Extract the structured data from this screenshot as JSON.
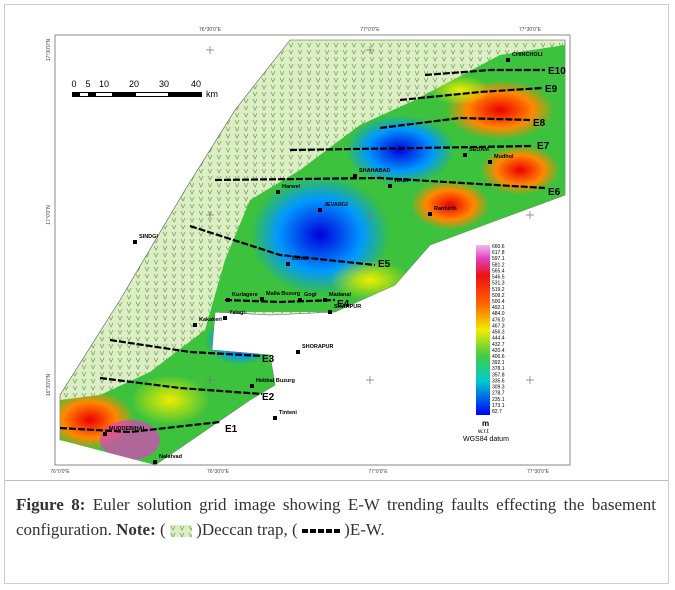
{
  "figure": {
    "map": {
      "graticule": {
        "top": [
          "76°30'0\"E",
          "77°0'0\"E",
          "77°30'0\"E"
        ],
        "bottom": [
          "76°0'0\"E",
          "76°30'0\"E",
          "77°0'0\"E",
          "77°30'0\"E"
        ],
        "left": [
          "17°30'0\"N",
          "17°0'0\"N",
          "16°30'0\"N"
        ]
      },
      "scale_bar": {
        "ticks": [
          "0",
          "5",
          "10",
          "20",
          "30",
          "40"
        ],
        "unit": "km"
      },
      "faults": [
        "E1",
        "E2",
        "E3",
        "E4",
        "E5",
        "E6",
        "E7",
        "E8",
        "E9",
        "E10"
      ],
      "places": [
        "CHINCHOLI",
        "SEDAM",
        "SHAHABAD",
        "WADI",
        "Harwel",
        "JEVARGI",
        "Mudhol",
        "Ranbirth",
        "SINDGI",
        "Uknali",
        "Kurlagere",
        "Malla Buzurg",
        "Gogi",
        "Madanal",
        "SHAHPUR",
        "Yalagi",
        "Kakakeri",
        "SHORAPUR",
        "Hebbal Buzurg",
        "Tinteni",
        "MUDDEBIHAL",
        "Nalatvad"
      ],
      "colorbar": {
        "values": [
          "660.6",
          "617.8",
          "597.1",
          "581.2",
          "565.4",
          "546.5",
          "531.3",
          "519.2",
          "509.2",
          "500.4",
          "492.1",
          "484.0",
          "476.0",
          "467.3",
          "456.3",
          "444.4",
          "432.7",
          "420.4",
          "406.6",
          "392.1",
          "378.1",
          "357.8",
          "335.6",
          "309.3",
          "278.7",
          "235.1",
          "173.1",
          "82.7"
        ],
        "unit": "m",
        "reference": [
          "w.r.t",
          "WGS84 datum"
        ]
      }
    },
    "caption": {
      "label": "Figure 8:",
      "text": "Euler solution grid image showing E-W trending faults effecting the basement configuration.",
      "note_label": "Note:",
      "items": [
        {
          "open": "(",
          "close": ")Deccan trap,"
        },
        {
          "open": "(",
          "close": ")E-W."
        }
      ]
    }
  }
}
